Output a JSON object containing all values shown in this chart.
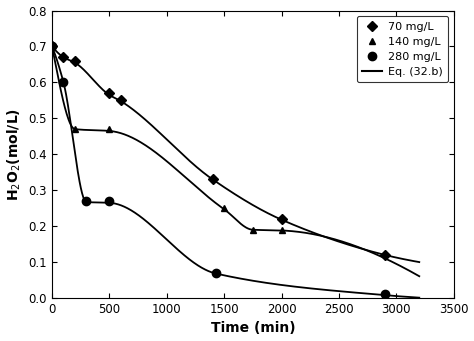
{
  "series": [
    {
      "label": "70 mg/L",
      "marker": "D",
      "x": [
        0,
        100,
        200,
        500,
        600,
        1400,
        2000,
        2900
      ],
      "y": [
        0.7,
        0.67,
        0.66,
        0.57,
        0.55,
        0.33,
        0.22,
        0.12
      ],
      "curve_x": [
        0,
        100,
        200,
        500,
        600,
        1400,
        2000,
        2900,
        3200
      ],
      "curve_y": [
        0.7,
        0.67,
        0.655,
        0.565,
        0.548,
        0.33,
        0.218,
        0.12,
        0.1
      ]
    },
    {
      "label": "140 mg/L",
      "marker": "^",
      "x": [
        0,
        200,
        500,
        1500,
        1750,
        2000
      ],
      "y": [
        0.7,
        0.47,
        0.47,
        0.25,
        0.19,
        0.19
      ],
      "curve_x": [
        0,
        200,
        500,
        1500,
        1750,
        2000,
        3000
      ],
      "curve_y": [
        0.7,
        0.47,
        0.465,
        0.247,
        0.19,
        0.188,
        0.095
      ]
    },
    {
      "label": "280 mg/L",
      "marker": "o",
      "x": [
        0,
        100,
        300,
        500,
        1430,
        2900
      ],
      "y": [
        0.7,
        0.6,
        0.27,
        0.27,
        0.07,
        0.01
      ],
      "curve_x": [
        0,
        100,
        300,
        500,
        1430,
        2900,
        3200
      ],
      "curve_y": [
        0.7,
        0.6,
        0.267,
        0.265,
        0.068,
        0.008,
        0.001
      ]
    }
  ],
  "xlabel": "Time (min)",
  "ylabel": "H$_2$O$_2$(mol/L)",
  "xlim": [
    0,
    3500
  ],
  "ylim": [
    0,
    0.8
  ],
  "xticks": [
    0,
    500,
    1000,
    1500,
    2000,
    2500,
    3000,
    3500
  ],
  "yticks": [
    0.0,
    0.1,
    0.2,
    0.3,
    0.4,
    0.5,
    0.6,
    0.7,
    0.8
  ],
  "color": "#000000",
  "background": "#ffffff",
  "legend_eq": "Eq. (32.b)",
  "line_width": 1.3
}
